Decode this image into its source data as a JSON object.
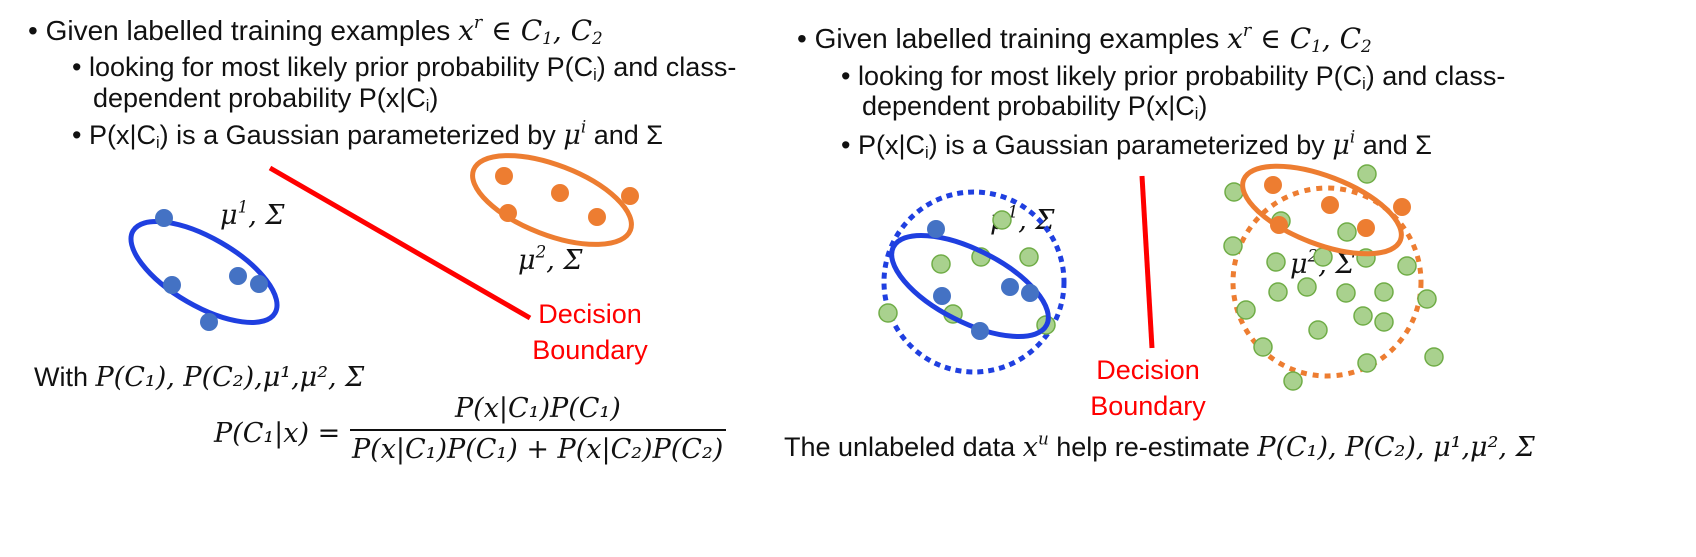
{
  "left": {
    "bullet1": "Given labelled training examples",
    "bullet1_math": "x",
    "bullet1_math_sup": "r",
    "bullet1_math_rest": " ∈ C",
    "bullet1_sub1": "1",
    "bullet1_sep": ", C",
    "bullet1_sub2": "2",
    "sub1_line1_a": "looking for most likely prior probability P(C",
    "sub1_i1": "i",
    "sub1_line1_b": ") and class-",
    "sub1_line2_a": "dependent probability P(x|C",
    "sub1_i2": "i",
    "sub1_line2_b": ")",
    "sub2_a": "P(x|C",
    "sub2_i": "i",
    "sub2_b": ") is a Gaussian parameterized by ",
    "sub2_mu": "μ",
    "sub2_mu_sup": "i",
    "sub2_and": " and Σ",
    "mu1_label": "μ",
    "mu1_sup": "1",
    "mu1_rest": ", Σ",
    "mu2_label": "μ",
    "mu2_sup": "2",
    "mu2_rest": ", Σ",
    "decision_line1": "Decision",
    "decision_line2": "Boundary",
    "with_text": "With ",
    "with_math": "P(C₁), P(C₂),μ¹,μ², Σ",
    "formula_lhs": "P(C₁|x) =",
    "formula_num": "P(x|C₁)P(C₁)",
    "formula_den": "P(x|C₁)P(C₁) + P(x|C₂)P(C₂)"
  },
  "right": {
    "bullet1": "Given labelled training examples",
    "bullet1_math": "x",
    "bullet1_math_sup": "r",
    "bullet1_math_rest": " ∈ C",
    "bullet1_sub1": "1",
    "bullet1_sep": ", C",
    "bullet1_sub2": "2",
    "sub1_line1_a": "looking for most likely prior probability P(C",
    "sub1_i1": "i",
    "sub1_line1_b": ") and class-",
    "sub1_line2_a": "dependent probability P(x|C",
    "sub1_i2": "i",
    "sub1_line2_b": ")",
    "sub2_a": "P(x|C",
    "sub2_i": "i",
    "sub2_b": ") is a Gaussian parameterized by ",
    "sub2_mu": "μ",
    "sub2_mu_sup": "i",
    "sub2_and": " and Σ",
    "mu1_label": "μ",
    "mu1_sup": "1",
    "mu1_rest": ", Σ",
    "mu2_label": "μ",
    "mu2_sup": "2",
    "mu2_rest": ", Σ",
    "decision_line1": "Decision",
    "decision_line2": "Boundary",
    "bottom_text": "The unlabeled data ",
    "bottom_math": "x",
    "bottom_math_sup": "u",
    "bottom_text2": " help re-estimate ",
    "bottom_math2": "P(C₁), P(C₂), μ¹,μ², Σ"
  },
  "colors": {
    "blue": "#1f3fe0",
    "blue_dot": "#4472c4",
    "orange": "#ed7d31",
    "red": "#ff0000",
    "green_fill": "#a9d18e",
    "green_stroke": "#70ad47"
  }
}
